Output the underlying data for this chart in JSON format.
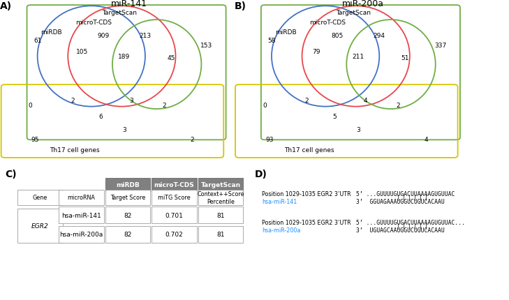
{
  "panel_A": {
    "title": "miR-141",
    "labels": {
      "targetscan": "TargetScan",
      "microT": "microT-CDS",
      "miRDB": "miRDB",
      "th17": "Th17 cell genes"
    },
    "numbers": {
      "ts_box_only": "153",
      "mirdb_only": "61",
      "mirdb_micro": "909",
      "micro_ts": "213",
      "mirdb_micro_only": "105",
      "all3": "189",
      "ts_only": "45",
      "th17_mirdb_only": "0",
      "th17_mirdb_micro": "2",
      "th17_all3": "6",
      "th17_micro_ts": "3",
      "th17_ts_only": "2",
      "th17_only": "95",
      "th17_micro_only": "3",
      "th17_right": "2"
    }
  },
  "panel_B": {
    "title": "miR-200a",
    "labels": {
      "targetscan": "TargetScan",
      "microT": "microT-CDS",
      "miRDB": "miRDB",
      "th17": "Th17 cell genes"
    },
    "numbers": {
      "ts_box_only": "337",
      "mirdb_only": "58",
      "mirdb_micro": "805",
      "micro_ts": "294",
      "mirdb_micro_only": "79",
      "all3": "211",
      "ts_only": "51",
      "th17_mirdb_only": "0",
      "th17_mirdb_micro": "2",
      "th17_all3": "5",
      "th17_micro_ts": "4",
      "th17_ts_only": "2",
      "th17_only": "93",
      "th17_micro_only": "3",
      "th17_right": "4"
    }
  },
  "colors": {
    "miRDB": "#4472C4",
    "microT_CDS": "#E8474C",
    "TargetScan": "#70AD47",
    "Th17": "#D4C700",
    "header_gray": "#808080"
  },
  "table": {
    "col_headers": [
      "miRDB",
      "microT-CDS",
      "TargetScan"
    ],
    "col_subheaders": [
      "Target Score",
      "miTG Score",
      "Context++Score\nPercentile"
    ],
    "rows": [
      [
        "hsa-miR-141",
        "82",
        "0.701",
        "81"
      ],
      [
        "hsa-miR-200a",
        "82",
        "0.702",
        "81"
      ]
    ],
    "gene": "EGR2"
  },
  "panel_D": {
    "b1_pos": "Position 1029-1035 EGR2 3’UTR",
    "b1_mirna": "hsa-miR-141",
    "b1_seq5": "5’ ...GUUUUGUGACUUAAAAGUGUUAC",
    "b1_seq3": "3’  GGUAGAAAUGGUCUGUCACAAU",
    "b2_pos": "Position 1029-1035 EGR2 3’UTR",
    "b2_mirna": "hsa-miR-200a",
    "b2_seq5": "5’ ...GUUUUGUGACUUAAAAGUGUUAC...",
    "b2_seq3": "3’  UGUAGCAAUGGUCUGUCACAAU",
    "bars": "| | | | | |"
  }
}
